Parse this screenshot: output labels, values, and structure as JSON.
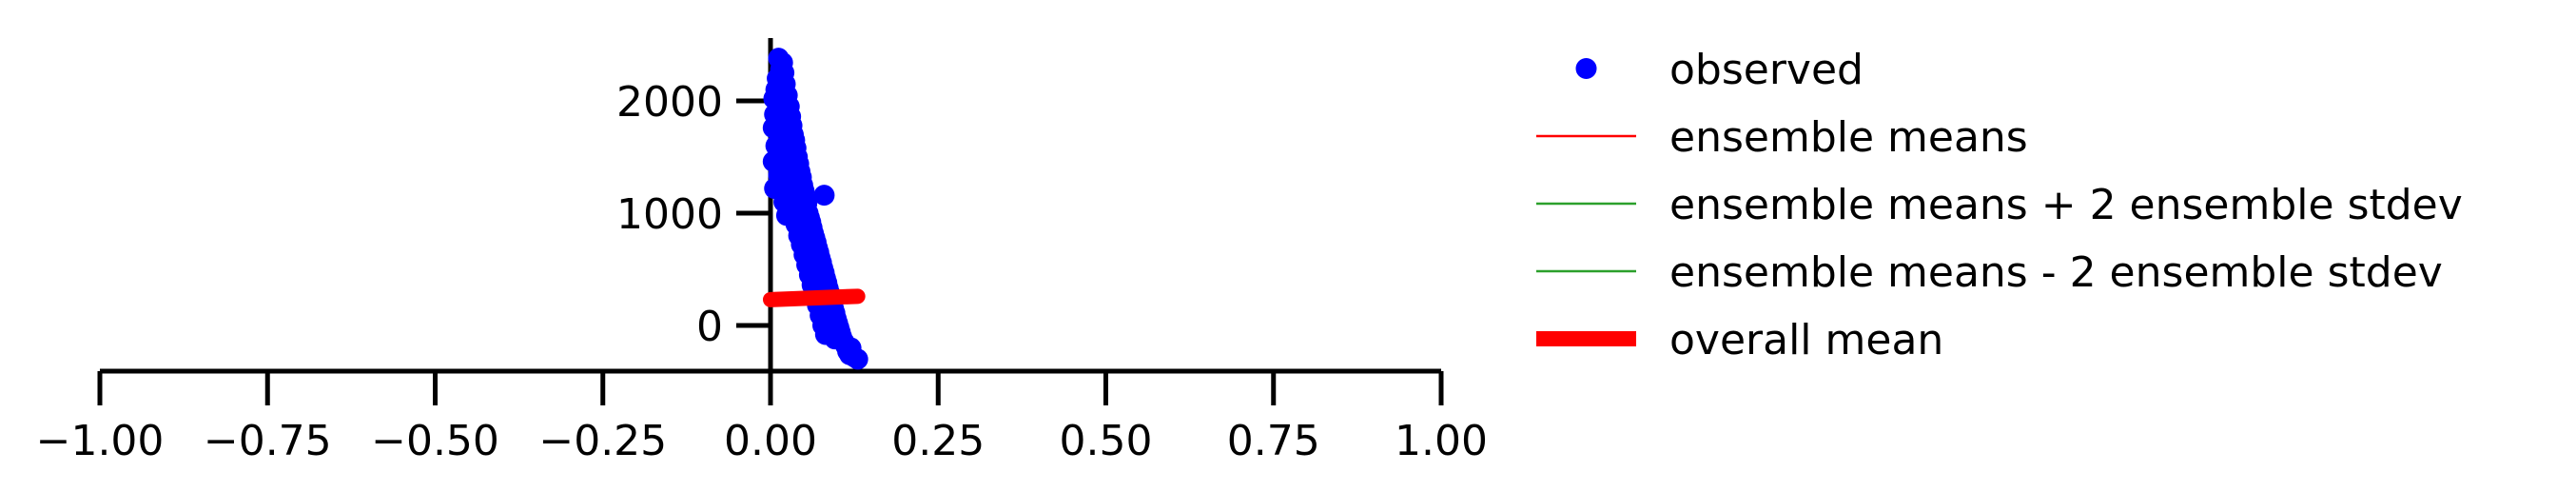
{
  "chart_data": {
    "type": "scatter",
    "title": "",
    "xlabel": "",
    "ylabel": "",
    "xlim": [
      -1.0,
      1.0
    ],
    "ylim": [
      -400,
      2550
    ],
    "x_ticks": [
      -1.0,
      -0.75,
      -0.5,
      -0.25,
      0.0,
      0.25,
      0.5,
      0.75,
      1.0
    ],
    "x_tick_labels": [
      "−1.00",
      "−0.75",
      "−0.50",
      "−0.25",
      "0.00",
      "0.25",
      "0.50",
      "0.75",
      "1.00"
    ],
    "y_ticks": [
      0,
      1000,
      2000
    ],
    "y_tick_labels": [
      "0",
      "1000",
      "2000"
    ],
    "grid": false,
    "legend_position": "right",
    "legend": [
      {
        "label": "observed",
        "style": "marker",
        "color": "#0000ff"
      },
      {
        "label": "ensemble means",
        "style": "thin-line",
        "color": "#ff0000"
      },
      {
        "label": "ensemble means + 2 ensemble stdev",
        "style": "thin-line",
        "color": "#2ca02c"
      },
      {
        "label": "ensemble means - 2 ensemble stdev",
        "style": "thin-line",
        "color": "#2ca02c"
      },
      {
        "label": "overall mean",
        "style": "thick-line",
        "color": "#ff0000"
      }
    ],
    "series": [
      {
        "name": "observed",
        "kind": "scatter",
        "color": "#0000ff",
        "points": [
          [
            0.012,
            2380
          ],
          [
            0.018,
            2340
          ],
          [
            0.015,
            2280
          ],
          [
            0.02,
            2250
          ],
          [
            0.01,
            2200
          ],
          [
            0.022,
            2150
          ],
          [
            0.008,
            2100
          ],
          [
            0.016,
            2080
          ],
          [
            0.025,
            2050
          ],
          [
            0.005,
            2020
          ],
          [
            0.012,
            1980
          ],
          [
            0.028,
            1950
          ],
          [
            0.018,
            1920
          ],
          [
            0.006,
            1880
          ],
          [
            0.03,
            1860
          ],
          [
            0.02,
            1830
          ],
          [
            0.01,
            1800
          ],
          [
            0.032,
            1780
          ],
          [
            0.004,
            1760
          ],
          [
            0.024,
            1740
          ],
          [
            0.034,
            1700
          ],
          [
            0.014,
            1680
          ],
          [
            0.036,
            1650
          ],
          [
            0.026,
            1620
          ],
          [
            0.008,
            1600
          ],
          [
            0.038,
            1580
          ],
          [
            0.03,
            1550
          ],
          [
            0.018,
            1520
          ],
          [
            0.04,
            1500
          ],
          [
            0.004,
            1460
          ],
          [
            0.042,
            1440
          ],
          [
            0.032,
            1420
          ],
          [
            0.022,
            1400
          ],
          [
            0.044,
            1370
          ],
          [
            0.012,
            1340
          ],
          [
            0.046,
            1320
          ],
          [
            0.036,
            1300
          ],
          [
            0.026,
            1280
          ],
          [
            0.048,
            1250
          ],
          [
            0.006,
            1220
          ],
          [
            0.05,
            1200
          ],
          [
            0.04,
            1180
          ],
          [
            0.08,
            1160
          ],
          [
            0.03,
            1150
          ],
          [
            0.052,
            1120
          ],
          [
            0.02,
            1100
          ],
          [
            0.054,
            1080
          ],
          [
            0.044,
            1050
          ],
          [
            0.034,
            1030
          ],
          [
            0.056,
            1000
          ],
          [
            0.024,
            980
          ],
          [
            0.058,
            960
          ],
          [
            0.048,
            940
          ],
          [
            0.06,
            920
          ],
          [
            0.038,
            900
          ],
          [
            0.062,
            870
          ],
          [
            0.052,
            850
          ],
          [
            0.064,
            820
          ],
          [
            0.042,
            800
          ],
          [
            0.066,
            780
          ],
          [
            0.056,
            760
          ],
          [
            0.068,
            740
          ],
          [
            0.046,
            720
          ],
          [
            0.07,
            690
          ],
          [
            0.06,
            670
          ],
          [
            0.072,
            650
          ],
          [
            0.05,
            630
          ],
          [
            0.074,
            600
          ],
          [
            0.064,
            580
          ],
          [
            0.076,
            560
          ],
          [
            0.054,
            540
          ],
          [
            0.078,
            510
          ],
          [
            0.068,
            490
          ],
          [
            0.08,
            470
          ],
          [
            0.058,
            450
          ],
          [
            0.082,
            420
          ],
          [
            0.072,
            400
          ],
          [
            0.084,
            380
          ],
          [
            0.062,
            360
          ],
          [
            0.086,
            330
          ],
          [
            0.076,
            310
          ],
          [
            0.088,
            290
          ],
          [
            0.066,
            270
          ],
          [
            0.09,
            240
          ],
          [
            0.08,
            220
          ],
          [
            0.092,
            200
          ],
          [
            0.07,
            180
          ],
          [
            0.094,
            150
          ],
          [
            0.084,
            130
          ],
          [
            0.096,
            110
          ],
          [
            0.074,
            90
          ],
          [
            0.098,
            60
          ],
          [
            0.088,
            40
          ],
          [
            0.1,
            20
          ],
          [
            0.078,
            0
          ],
          [
            0.102,
            -20
          ],
          [
            0.092,
            -40
          ],
          [
            0.104,
            -60
          ],
          [
            0.082,
            -80
          ],
          [
            0.106,
            -100
          ],
          [
            0.096,
            -120
          ],
          [
            0.11,
            -150
          ],
          [
            0.112,
            -180
          ],
          [
            0.12,
            -200
          ],
          [
            0.115,
            -230
          ],
          [
            0.118,
            -260
          ],
          [
            0.125,
            -280
          ],
          [
            0.13,
            -300
          ]
        ]
      },
      {
        "name": "overall mean",
        "kind": "line",
        "color": "#ff0000",
        "points": [
          [
            0.0,
            230
          ],
          [
            0.13,
            260
          ]
        ]
      }
    ]
  }
}
